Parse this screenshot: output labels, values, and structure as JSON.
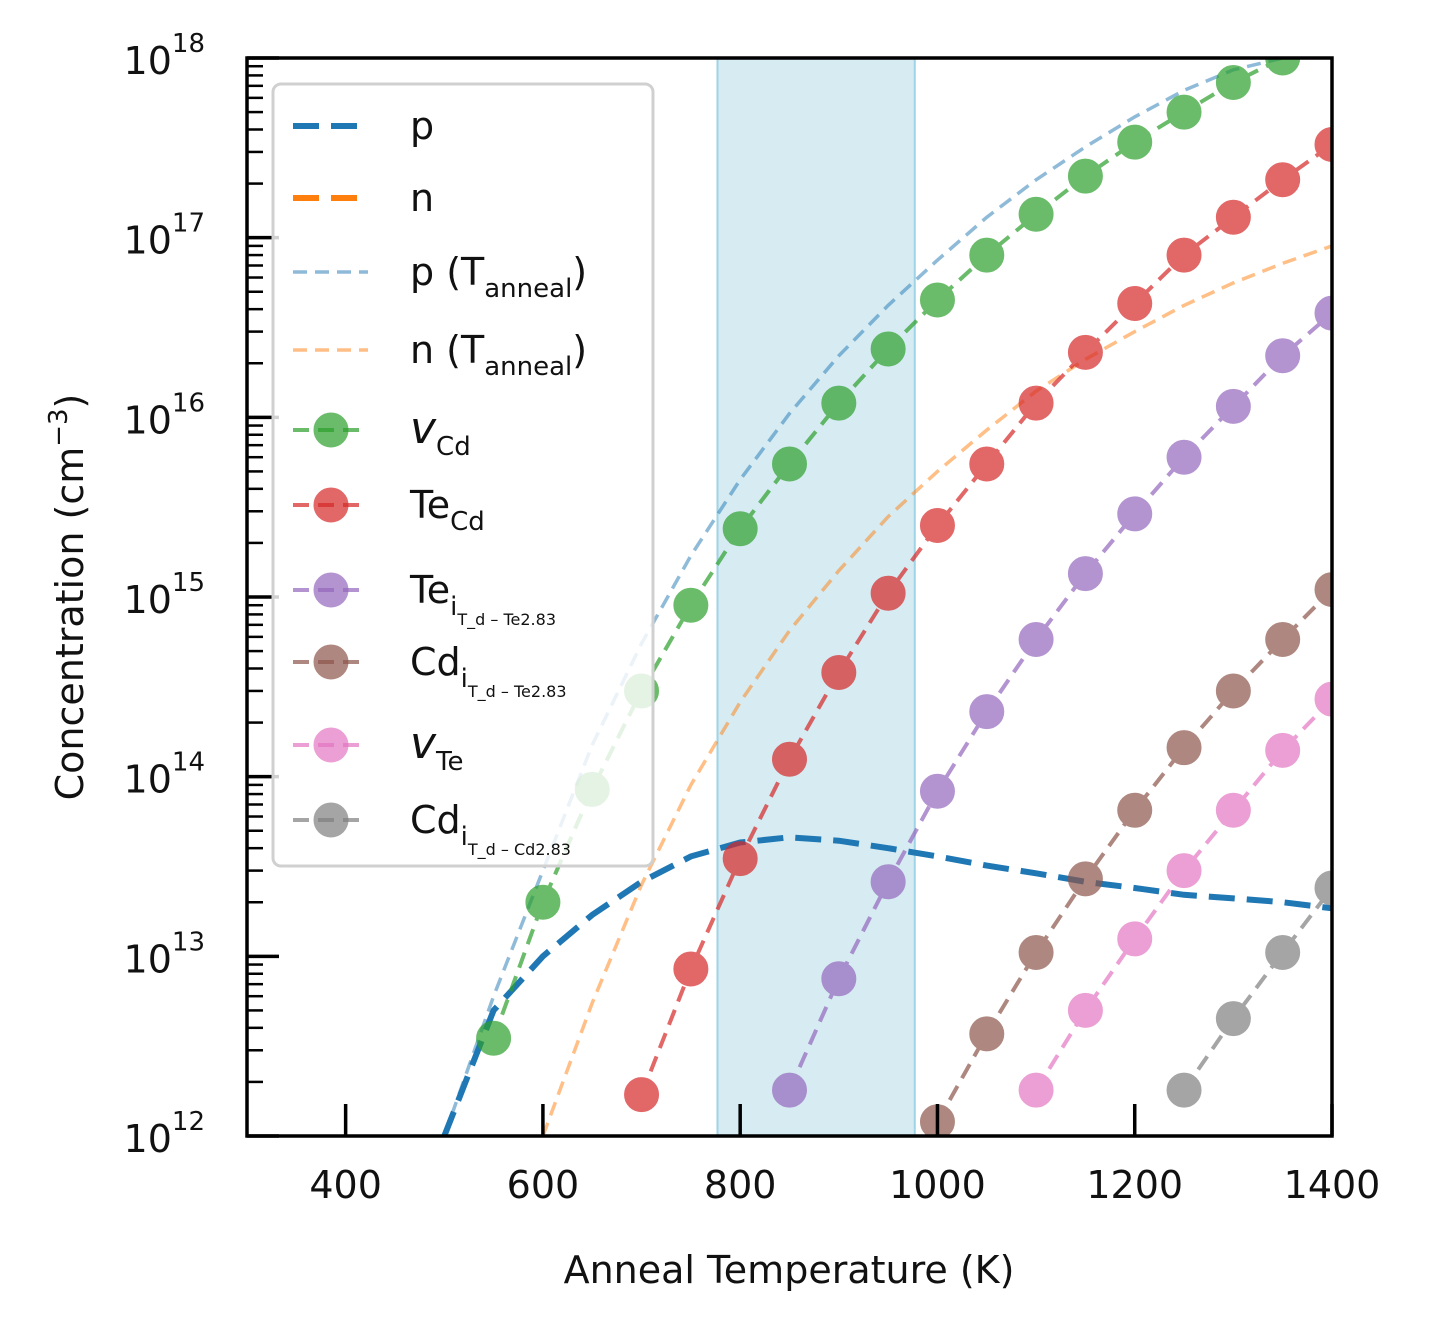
{
  "chart_data": {
    "type": "line",
    "title": "",
    "xlabel": "Anneal Temperature (K)",
    "ylabel_base": "Concentration (cm",
    "ylabel_exp": "−3",
    "ylabel_end": ")",
    "xlim": [
      300,
      1400
    ],
    "ylim": [
      1000000000000.0,
      1e+18
    ],
    "y_scale": "log",
    "grid": false,
    "legend_position": "upper-left",
    "x_ticks": [
      400,
      600,
      800,
      1000,
      1200,
      1400
    ],
    "x_tick_labels": [
      "400",
      "600",
      "800",
      "1000",
      "1200",
      "1400"
    ],
    "y_ticks": [
      12,
      13,
      14,
      15,
      16,
      17,
      18
    ],
    "y_tick_base": "10",
    "y_tick_exponents": [
      "12",
      "13",
      "14",
      "15",
      "16",
      "17",
      "18"
    ],
    "shaded_region": {
      "x_start": 777,
      "x_end": 977,
      "color": "#add8e6"
    },
    "series": [
      {
        "name": "p",
        "label_main": "p",
        "label_sub": "",
        "label_subsub": "",
        "italic": false,
        "color": "#1f77b4",
        "style": "dashed-thick",
        "opacity": 1,
        "x": [
          500,
          550,
          600,
          650,
          700,
          750,
          800,
          850,
          900,
          950,
          1000,
          1050,
          1100,
          1150,
          1200,
          1250,
          1300,
          1350,
          1400
        ],
        "y": [
          1000000000000.0,
          5000000000000.0,
          10000000000000.0,
          17000000000000.0,
          26000000000000.0,
          36000000000000.0,
          43000000000000.0,
          46000000000000.0,
          44000000000000.0,
          40000000000000.0,
          36000000000000.0,
          32000000000000.0,
          29000000000000.0,
          26000000000000.0,
          24000000000000.0,
          22000000000000.0,
          21000000000000.0,
          20000000000000.0,
          18500000000000.0
        ]
      },
      {
        "name": "n",
        "label_main": "n",
        "label_sub": "",
        "label_subsub": "",
        "italic": false,
        "color": "#ff7f0e",
        "style": "dashed-thick",
        "opacity": 1,
        "x": [],
        "y": []
      },
      {
        "name": "p (Tanneal)",
        "label_main": "p (T",
        "label_sub": "anneal",
        "label_end": ")",
        "label_subsub": "",
        "italic": false,
        "color": "#1f77b4",
        "style": "dashed-thin",
        "opacity": 0.5,
        "x": [
          500,
          550,
          600,
          650,
          700,
          750,
          800,
          850,
          900,
          950,
          1000,
          1050,
          1100,
          1150,
          1200,
          1250,
          1300,
          1350
        ],
        "y": [
          1000000000000.0,
          6000000000000.0,
          30000000000000.0,
          150000000000000.0,
          550000000000000.0,
          1700000000000000.0,
          4500000000000000.0,
          1.05e+16,
          2.2e+16,
          4.2e+16,
          7.5e+16,
          1.3e+17,
          2.1e+17,
          3.2e+17,
          4.7e+17,
          6.6e+17,
          8.6e+17,
          1e+18
        ]
      },
      {
        "name": "n (Tanneal)",
        "label_main": "n (T",
        "label_sub": "anneal",
        "label_end": ")",
        "label_subsub": "",
        "italic": false,
        "color": "#ff7f0e",
        "style": "dashed-thin",
        "opacity": 0.5,
        "x": [
          600,
          650,
          700,
          750,
          800,
          850,
          900,
          950,
          1000,
          1050,
          1100,
          1150,
          1200,
          1250,
          1300,
          1350,
          1400
        ],
        "y": [
          1000000000000.0,
          5500000000000.0,
          25000000000000.0,
          90000000000000.0,
          260000000000000.0,
          650000000000000.0,
          1400000000000000.0,
          2800000000000000.0,
          5000000000000000.0,
          8500000000000000.0,
          1.4e+16,
          2.1e+16,
          3e+16,
          4.2e+16,
          5.6e+16,
          7.2e+16,
          9e+16
        ]
      },
      {
        "name": "vCd",
        "label_main": "v",
        "label_sub": "Cd",
        "label_subsub": "",
        "italic": true,
        "color": "#2ca02c",
        "style": "dashed-marker",
        "opacity": 0.7,
        "x": [
          550,
          600,
          650,
          700,
          750,
          800,
          850,
          900,
          950,
          1000,
          1050,
          1100,
          1150,
          1200,
          1250,
          1300,
          1350
        ],
        "y": [
          3500000000000.0,
          20000000000000.0,
          85000000000000.0,
          300000000000000.0,
          900000000000000.0,
          2400000000000000.0,
          5500000000000000.0,
          1.2e+16,
          2.4e+16,
          4.5e+16,
          8e+16,
          1.35e+17,
          2.2e+17,
          3.4e+17,
          5e+17,
          7.3e+17,
          1e+18
        ]
      },
      {
        "name": "TeCd",
        "label_main": "Te",
        "label_sub": "Cd",
        "label_subsub": "",
        "italic": false,
        "color": "#d62728",
        "style": "dashed-marker",
        "opacity": 0.7,
        "x": [
          700,
          750,
          800,
          850,
          900,
          950,
          1000,
          1050,
          1100,
          1150,
          1200,
          1250,
          1300,
          1350,
          1400
        ],
        "y": [
          1700000000000.0,
          8500000000000.0,
          35000000000000.0,
          125000000000000.0,
          380000000000000.0,
          1050000000000000.0,
          2500000000000000.0,
          5500000000000000.0,
          1.2e+16,
          2.3e+16,
          4.3e+16,
          8e+16,
          1.3e+17,
          2.1e+17,
          3.3e+17
        ]
      },
      {
        "name": "Tei",
        "label_main": "Te",
        "label_sub": "i",
        "label_subsub": "T_d – Te2.83",
        "italic": false,
        "color": "#9467bd",
        "style": "dashed-marker",
        "opacity": 0.7,
        "x": [
          850,
          900,
          950,
          1000,
          1050,
          1100,
          1150,
          1200,
          1250,
          1300,
          1350,
          1400
        ],
        "y": [
          1800000000000.0,
          7500000000000.0,
          26000000000000.0,
          83000000000000.0,
          230000000000000.0,
          580000000000000.0,
          1350000000000000.0,
          2900000000000000.0,
          6000000000000000.0,
          1.15e+16,
          2.2e+16,
          3.8e+16
        ]
      },
      {
        "name": "Cdi (Te2.83)",
        "label_main": "Cd",
        "label_sub": "i",
        "label_subsub": "T_d – Te2.83",
        "italic": false,
        "color": "#8c564b",
        "style": "dashed-marker",
        "opacity": 0.7,
        "x": [
          1000,
          1050,
          1100,
          1150,
          1200,
          1250,
          1300,
          1350,
          1400
        ],
        "y": [
          1200000000000.0,
          3700000000000.0,
          10500000000000.0,
          27000000000000.0,
          65000000000000.0,
          145000000000000.0,
          300000000000000.0,
          580000000000000.0,
          1100000000000000.0
        ]
      },
      {
        "name": "vTe",
        "label_main": "v",
        "label_sub": "Te",
        "label_subsub": "",
        "italic": true,
        "color": "#e377c2",
        "style": "dashed-marker",
        "opacity": 0.7,
        "x": [
          1100,
          1150,
          1200,
          1250,
          1300,
          1350,
          1400
        ],
        "y": [
          1800000000000.0,
          5000000000000.0,
          12500000000000.0,
          30000000000000.0,
          65000000000000.0,
          140000000000000.0,
          270000000000000.0
        ]
      },
      {
        "name": "Cdi (Cd2.83)",
        "label_main": "Cd",
        "label_sub": "i",
        "label_subsub": "T_d – Cd2.83",
        "italic": false,
        "color": "#7f7f7f",
        "style": "dashed-marker",
        "opacity": 0.7,
        "x": [
          1250,
          1300,
          1350,
          1400
        ],
        "y": [
          1800000000000.0,
          4500000000000.0,
          10500000000000.0,
          24000000000000.0
        ]
      }
    ]
  }
}
